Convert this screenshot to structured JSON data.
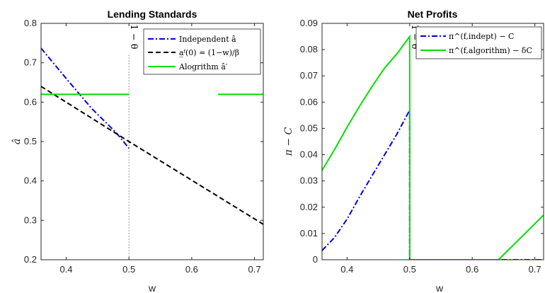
{
  "chart_data": [
    {
      "type": "line",
      "title": "Lending Standards",
      "xlabel": "w",
      "ylabel": "â",
      "xlim": [
        0.36,
        0.714
      ],
      "ylim": [
        0.2,
        0.8
      ],
      "xticks": [
        "0.4",
        "0.5",
        "0.6",
        "0.7"
      ],
      "yticks": [
        "0.2",
        "0.3",
        "0.4",
        "0.5",
        "0.6",
        "0.7",
        "0.8"
      ],
      "grid": false,
      "legend_position": "top-right",
      "annotation": {
        "text": "1 − θ",
        "x": 0.5
      },
      "series": [
        {
          "name": "Independent â",
          "style": "dash-dot",
          "color": "#0000dd",
          "x": [
            0.36,
            0.4,
            0.44,
            0.48,
            0.5
          ],
          "y": [
            0.737,
            0.66,
            0.585,
            0.522,
            0.483
          ]
        },
        {
          "name": "a̲ᶠ(0) = (1−w)/β",
          "style": "dashed",
          "color": "#000000",
          "x": [
            0.36,
            0.5,
            0.714
          ],
          "y": [
            0.64,
            0.5,
            0.29
          ]
        },
        {
          "name": "Alogrithm â′",
          "style": "solid",
          "color": "#00e000",
          "segments": [
            {
              "x": [
                0.36,
                0.5
              ],
              "y": [
                0.62,
                0.62
              ]
            },
            {
              "x": [
                0.642,
                0.714
              ],
              "y": [
                0.62,
                0.62
              ]
            }
          ]
        }
      ]
    },
    {
      "type": "line",
      "title": "Net Profits",
      "xlabel": "w",
      "ylabel": "π − C",
      "xlim": [
        0.36,
        0.714
      ],
      "ylim": [
        0,
        0.09
      ],
      "xticks": [
        "0.4",
        "0.5",
        "0.6",
        "0.7"
      ],
      "yticks": [
        "0",
        "0.01",
        "0.02",
        "0.03",
        "0.04",
        "0.05",
        "0.06",
        "0.07",
        "0.08",
        "0.09"
      ],
      "grid": false,
      "legend_position": "top-right",
      "annotation": {
        "text": "1 − θ",
        "x": 0.5
      },
      "series": [
        {
          "name": "π^(f,indept) − C",
          "style": "dash-dot",
          "color": "#0000dd",
          "x": [
            0.36,
            0.38,
            0.4,
            0.42,
            0.44,
            0.46,
            0.48,
            0.5,
            0.5,
            0.642,
            0.714
          ],
          "y": [
            0.0035,
            0.0085,
            0.0155,
            0.024,
            0.032,
            0.04,
            0.048,
            0.057,
            0,
            0,
            0
          ]
        },
        {
          "name": "π^(f,algorithm) − δC",
          "style": "solid",
          "color": "#00e000",
          "x": [
            0.36,
            0.38,
            0.4,
            0.42,
            0.44,
            0.46,
            0.48,
            0.5,
            0.5,
            0.642,
            0.714
          ],
          "y": [
            0.034,
            0.042,
            0.0505,
            0.0585,
            0.066,
            0.073,
            0.0785,
            0.085,
            0,
            0,
            0.017
          ]
        }
      ]
    }
  ]
}
